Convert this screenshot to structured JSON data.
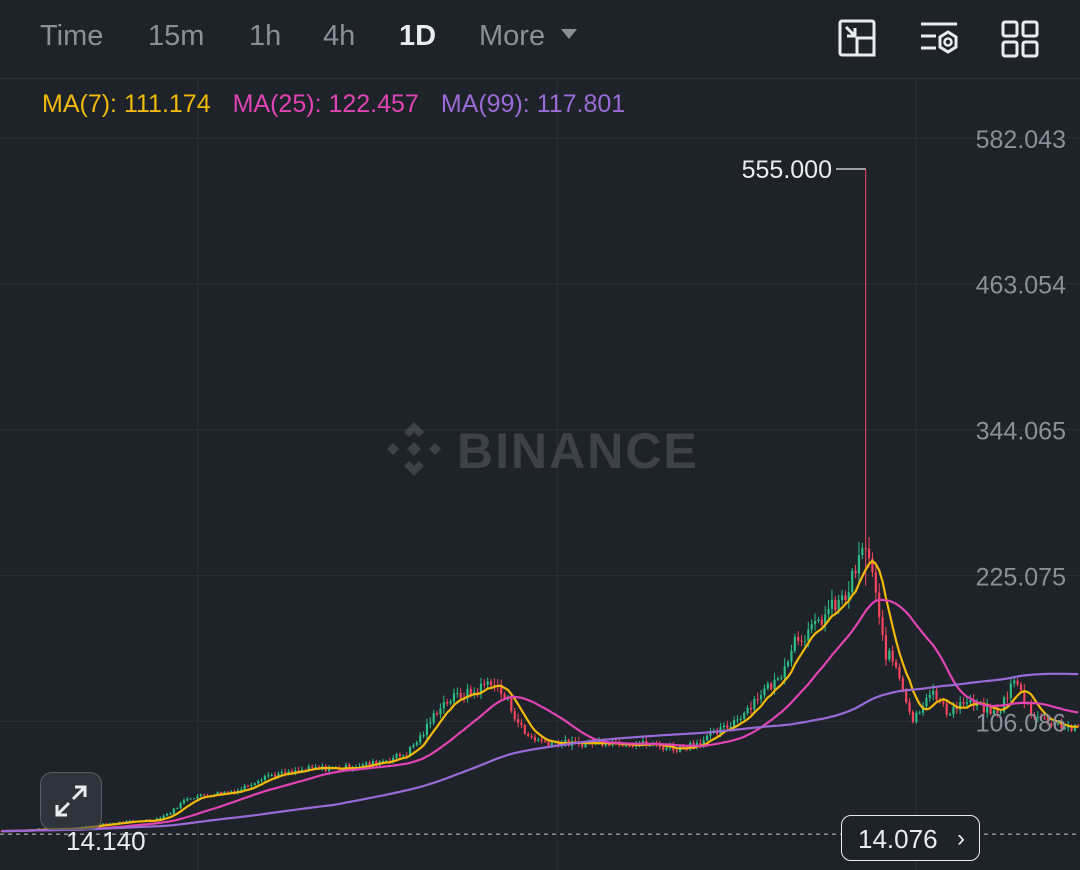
{
  "toolbar": {
    "timeframes": [
      {
        "label": "Time",
        "active": false
      },
      {
        "label": "15m",
        "active": false
      },
      {
        "label": "1h",
        "active": false
      },
      {
        "label": "4h",
        "active": false
      },
      {
        "label": "1D",
        "active": true
      },
      {
        "label": "More",
        "active": false
      }
    ],
    "icons": [
      "fullscreen-chart-icon",
      "indicator-settings-icon",
      "grid-layout-icon"
    ]
  },
  "watermark": "BINANCE",
  "ma_legend": [
    {
      "label": "MA(7): 111.174",
      "color": "#f0b90b"
    },
    {
      "label": "MA(25): 122.457",
      "color": "#e044b4"
    },
    {
      "label": "MA(99): 117.801",
      "color": "#9a6ad6"
    }
  ],
  "price_badge": "14.076",
  "colors": {
    "up": "#2ebd85",
    "down": "#f6465d",
    "ma7": "#f0b90b",
    "ma25": "#e044b4",
    "ma99": "#9a6ad6",
    "background": "#1e2229"
  },
  "chart_data": {
    "type": "candlestick",
    "interval": "1D",
    "y_ticks": [
      582.043,
      463.054,
      344.065,
      225.075,
      106.086
    ],
    "y_tick_labels": [
      "582.043",
      "463.054",
      "344.065",
      "225.075",
      "106.086"
    ],
    "ylim": [
      14,
      620
    ],
    "max_label": "555.000",
    "min_label": "14.140",
    "current_price": 14.076,
    "anchors": [
      [
        0,
        15
      ],
      [
        20,
        17
      ],
      [
        35,
        22
      ],
      [
        45,
        24
      ],
      [
        50,
        30
      ],
      [
        55,
        42
      ],
      [
        62,
        45
      ],
      [
        70,
        48
      ],
      [
        78,
        60
      ],
      [
        85,
        62
      ],
      [
        92,
        66
      ],
      [
        100,
        66
      ],
      [
        110,
        70
      ],
      [
        120,
        78
      ],
      [
        125,
        95
      ],
      [
        130,
        118
      ],
      [
        135,
        125
      ],
      [
        140,
        128
      ],
      [
        145,
        138
      ],
      [
        150,
        120
      ],
      [
        155,
        94
      ],
      [
        160,
        88
      ],
      [
        170,
        86
      ],
      [
        180,
        88
      ],
      [
        190,
        86
      ],
      [
        200,
        82
      ],
      [
        207,
        88
      ],
      [
        215,
        100
      ],
      [
        220,
        112
      ],
      [
        225,
        128
      ],
      [
        230,
        138
      ],
      [
        235,
        172
      ],
      [
        240,
        178
      ],
      [
        245,
        195
      ],
      [
        250,
        205
      ],
      [
        253,
        228
      ],
      [
        256,
        248
      ],
      [
        258,
        225
      ],
      [
        260,
        185
      ],
      [
        262,
        160
      ],
      [
        265,
        150
      ],
      [
        270,
        105
      ],
      [
        275,
        130
      ],
      [
        280,
        112
      ],
      [
        285,
        120
      ],
      [
        290,
        116
      ],
      [
        295,
        110
      ],
      [
        300,
        138
      ],
      [
        305,
        112
      ],
      [
        310,
        104
      ],
      [
        318,
        98
      ]
    ],
    "spike": {
      "index": 256,
      "high": 555,
      "low": 215
    },
    "ma_periods": [
      7,
      25,
      99
    ]
  }
}
